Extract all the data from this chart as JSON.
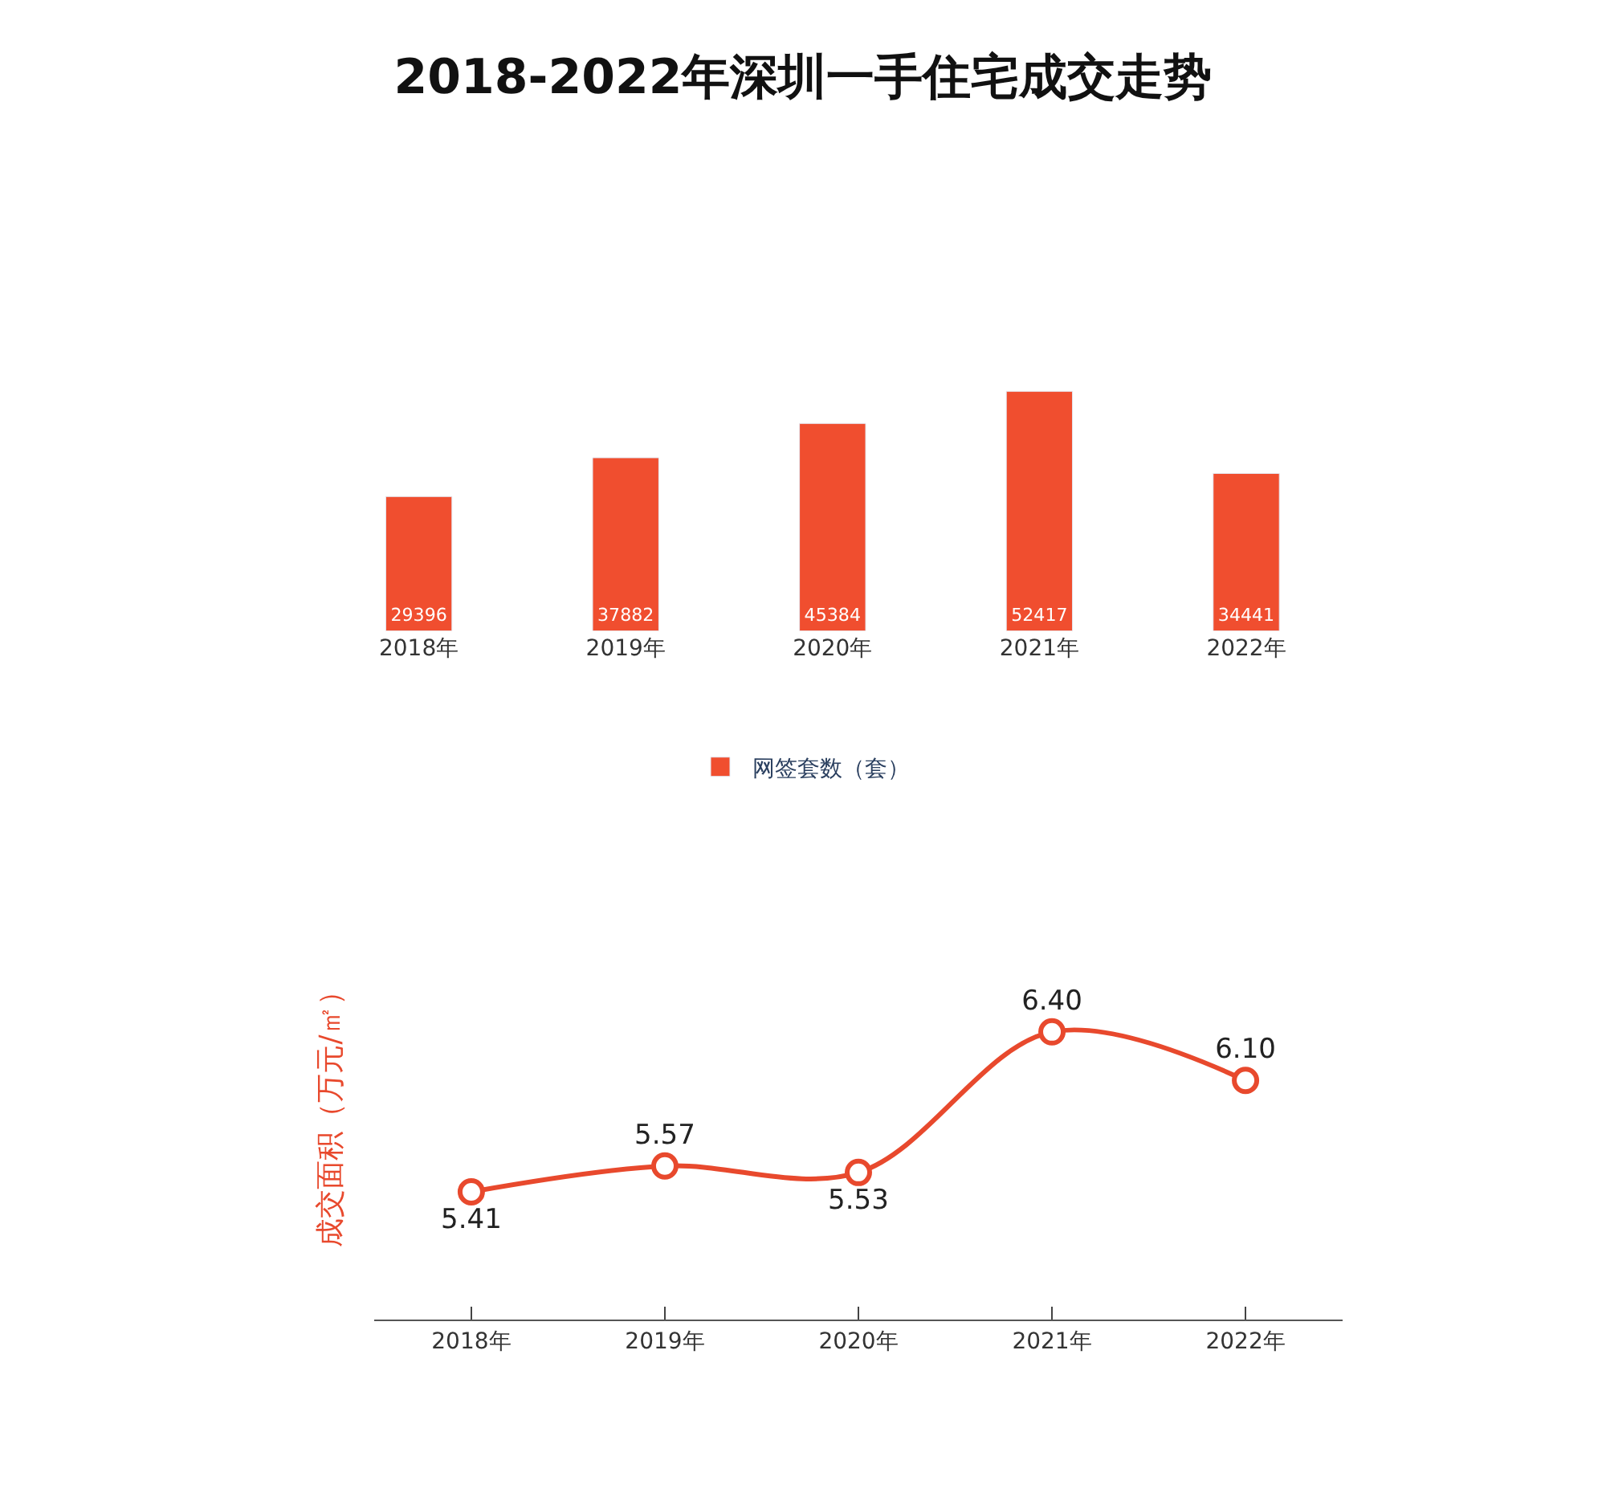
{
  "chart_data": [
    {
      "type": "bar",
      "title": "2018-2022年深圳一手住宅成交走势",
      "categories": [
        "2018年",
        "2019年",
        "2020年",
        "2021年",
        "2022年"
      ],
      "series": [
        {
          "name": "网签套数（套）",
          "color": "#f04e2f",
          "values": [
            29396,
            37882,
            45384,
            52417,
            34441
          ]
        }
      ],
      "data_labels": true,
      "legend": "bottom",
      "tick_labels": "x"
    },
    {
      "type": "line",
      "ylabel": "成交面积（万元/㎡）",
      "categories": [
        "2018年",
        "2019年",
        "2020年",
        "2021年",
        "2022年"
      ],
      "series": [
        {
          "color": "#e8492d",
          "values": [
            5.41,
            5.57,
            5.53,
            6.4,
            6.1
          ],
          "value_labels": [
            "5.41",
            "5.57",
            "5.53",
            "6.40",
            "6.10"
          ]
        }
      ],
      "marker": "circle",
      "line_style": "solid",
      "tick_labels": "x"
    }
  ]
}
